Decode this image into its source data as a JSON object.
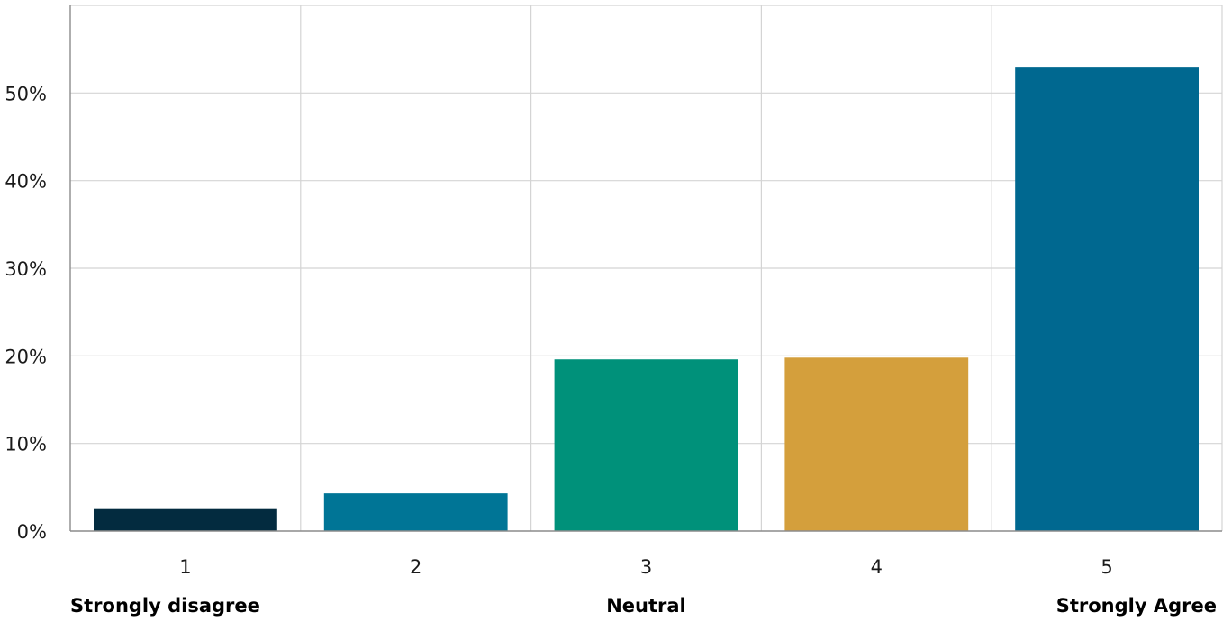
{
  "chart_data": {
    "type": "bar",
    "title": "",
    "xlabel": "",
    "ylabel": "",
    "categories": [
      "1",
      "2",
      "3",
      "4",
      "5"
    ],
    "values": [
      2.6,
      4.3,
      19.6,
      19.8,
      53.0
    ],
    "value_unit": "%",
    "bar_colors": [
      "#032b3f",
      "#007596",
      "#00917a",
      "#d49f3c",
      "#006890"
    ],
    "ylim": [
      0,
      60
    ],
    "yticks": [
      0,
      10,
      20,
      30,
      40,
      50
    ],
    "ytick_labels": [
      "0%",
      "10%",
      "20%",
      "30%",
      "40%",
      "50%"
    ],
    "grid": true,
    "legend": "none",
    "scale_labels": [
      {
        "category": "1",
        "text": "Strongly disagree"
      },
      {
        "category": "3",
        "text": "Neutral"
      },
      {
        "category": "5",
        "text": "Strongly Agree"
      }
    ]
  }
}
